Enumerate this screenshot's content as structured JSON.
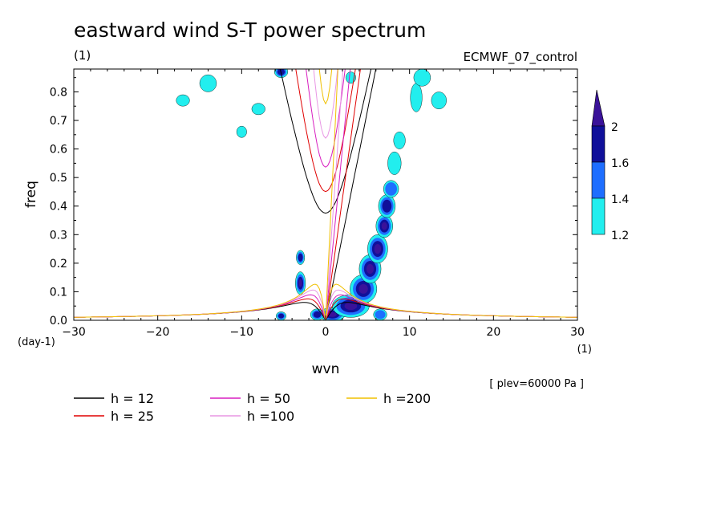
{
  "chart_data": {
    "type": "contour",
    "title": "eastward wind S-T power spectrum",
    "units_left": "(1)",
    "model": "ECMWF_07_control",
    "xlabel": "wvn",
    "ylabel": "freq",
    "x_unit": "(1)",
    "y_unit": "(day-1)",
    "annotation": "[ plev=60000 Pa ]",
    "xlim": [
      -30,
      30
    ],
    "ylim": [
      0,
      0.88
    ],
    "x_ticks": [
      "-30",
      "-20",
      "-10",
      "0",
      "10",
      "20",
      "30"
    ],
    "y_ticks": [
      "0.0",
      "0.1",
      "0.2",
      "0.3",
      "0.4",
      "0.5",
      "0.6",
      "0.7",
      "0.8"
    ],
    "colorbar": {
      "levels": [
        "1.2",
        "1.4",
        "1.6",
        "2"
      ],
      "colors": [
        "#22eeee",
        "#1e6eff",
        "#10109a",
        "#3a1299"
      ]
    },
    "dispersion_curves": [
      {
        "label": "h = 12",
        "h": 12,
        "color": "#000000"
      },
      {
        "label": "h = 25",
        "h": 25,
        "color": "#e00000"
      },
      {
        "label": "h = 50",
        "h": 50,
        "color": "#d81ec0"
      },
      {
        "label": "h =100",
        "h": 100,
        "color": "#e896e4"
      },
      {
        "label": "h =200",
        "h": 200,
        "color": "#f0c000"
      }
    ],
    "power_blobs": [
      {
        "x": 0.8,
        "y": 0.02,
        "rx": 1.5,
        "ry": 0.025,
        "level": 3
      },
      {
        "x": 3.0,
        "y": 0.05,
        "rx": 2.2,
        "ry": 0.04,
        "level": 3
      },
      {
        "x": 4.5,
        "y": 0.11,
        "rx": 1.6,
        "ry": 0.05,
        "level": 3
      },
      {
        "x": 5.3,
        "y": 0.18,
        "rx": 1.3,
        "ry": 0.05,
        "level": 3
      },
      {
        "x": 6.2,
        "y": 0.25,
        "rx": 1.2,
        "ry": 0.05,
        "level": 3
      },
      {
        "x": 7.0,
        "y": 0.33,
        "rx": 1.0,
        "ry": 0.04,
        "level": 3
      },
      {
        "x": 7.3,
        "y": 0.4,
        "rx": 1.0,
        "ry": 0.04,
        "level": 2
      },
      {
        "x": 7.8,
        "y": 0.46,
        "rx": 0.9,
        "ry": 0.03,
        "level": 1
      },
      {
        "x": 8.2,
        "y": 0.55,
        "rx": 0.8,
        "ry": 0.04,
        "level": 0
      },
      {
        "x": 8.8,
        "y": 0.63,
        "rx": 0.7,
        "ry": 0.03,
        "level": 0
      },
      {
        "x": 10.8,
        "y": 0.78,
        "rx": 0.7,
        "ry": 0.05,
        "level": 0
      },
      {
        "x": 13.5,
        "y": 0.77,
        "rx": 0.9,
        "ry": 0.03,
        "level": 0
      },
      {
        "x": 11.5,
        "y": 0.85,
        "rx": 1.0,
        "ry": 0.03,
        "level": 0
      },
      {
        "x": -3.0,
        "y": 0.13,
        "rx": 0.6,
        "ry": 0.04,
        "level": 3
      },
      {
        "x": -3.0,
        "y": 0.22,
        "rx": 0.5,
        "ry": 0.025,
        "level": 2
      },
      {
        "x": -5.3,
        "y": 0.015,
        "rx": 0.6,
        "ry": 0.015,
        "level": 2
      },
      {
        "x": -1.0,
        "y": 0.02,
        "rx": 0.8,
        "ry": 0.02,
        "level": 2
      },
      {
        "x": -5.3,
        "y": 0.87,
        "rx": 0.8,
        "ry": 0.02,
        "level": 2
      },
      {
        "x": -14.0,
        "y": 0.83,
        "rx": 1.0,
        "ry": 0.03,
        "level": 0
      },
      {
        "x": -17.0,
        "y": 0.77,
        "rx": 0.8,
        "ry": 0.02,
        "level": 0
      },
      {
        "x": -8.0,
        "y": 0.74,
        "rx": 0.8,
        "ry": 0.02,
        "level": 0
      },
      {
        "x": -10.0,
        "y": 0.66,
        "rx": 0.6,
        "ry": 0.02,
        "level": 0
      },
      {
        "x": 6.5,
        "y": 0.02,
        "rx": 0.8,
        "ry": 0.02,
        "level": 1
      },
      {
        "x": 3.0,
        "y": 0.85,
        "rx": 0.6,
        "ry": 0.02,
        "level": 0
      }
    ]
  },
  "legend": [
    {
      "label": "h = 12",
      "color": "#000000"
    },
    {
      "label": "h = 25",
      "color": "#e00000"
    },
    {
      "label": "h = 50",
      "color": "#d81ec0"
    },
    {
      "label": "h =100",
      "color": "#e896e4"
    },
    {
      "label": "h =200",
      "color": "#f0c000"
    }
  ]
}
